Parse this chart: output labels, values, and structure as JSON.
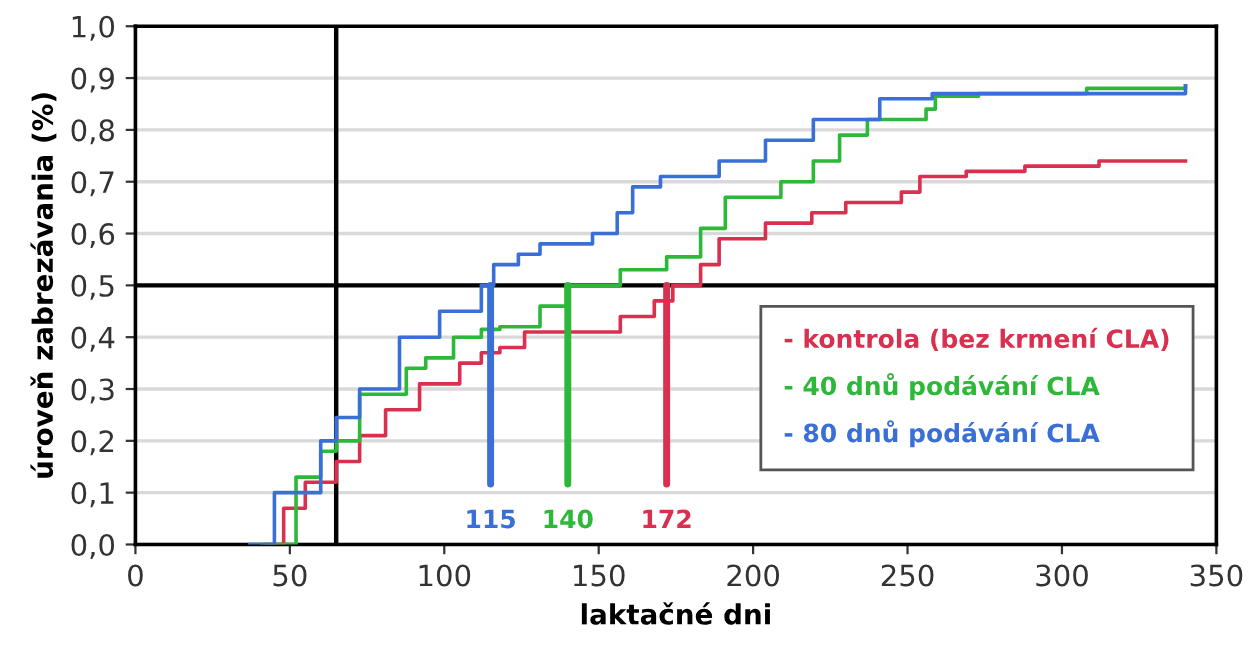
{
  "chart_data": {
    "type": "step",
    "xlabel": "laktačné dni",
    "ylabel": "úroveň zabrezávania (%)",
    "xlim": [
      0,
      350
    ],
    "xticks": [
      0,
      50,
      100,
      150,
      200,
      250,
      300,
      350
    ],
    "ylim": [
      0,
      1
    ],
    "yticks": [
      {
        "value": 0,
        "label": "0,0"
      },
      {
        "value": 0.1,
        "label": "0,1"
      },
      {
        "value": 0.2,
        "label": "0,2"
      },
      {
        "value": 0.3,
        "label": "0,3"
      },
      {
        "value": 0.4,
        "label": "0,4"
      },
      {
        "value": 0.5,
        "label": "0,5"
      },
      {
        "value": 0.6,
        "label": "0,6"
      },
      {
        "value": 0.7,
        "label": "0,7"
      },
      {
        "value": 0.8,
        "label": "0,8"
      },
      {
        "value": 0.9,
        "label": "0,9"
      },
      {
        "value": 1,
        "label": "1,0"
      }
    ],
    "grid": "y",
    "legend": "bottom right",
    "series": [
      {
        "name": "- kontrola (bez krmení CLA)",
        "color": "#d9304f",
        "x": [
          42.6,
          48,
          55,
          65,
          72.6,
          81,
          92,
          105,
          112,
          118,
          126,
          145,
          157,
          168,
          174,
          183,
          189,
          204,
          219,
          230,
          248,
          254,
          269,
          288,
          312,
          340
        ],
        "values": [
          0,
          0.07,
          0.12,
          0.16,
          0.21,
          0.26,
          0.31,
          0.35,
          0.37,
          0.38,
          0.41,
          0.41,
          0.44,
          0.47,
          0.5,
          0.54,
          0.59,
          0.62,
          0.64,
          0.66,
          0.68,
          0.71,
          0.72,
          0.73,
          0.74,
          0.74
        ]
      },
      {
        "name": "- 40 dnů podávání CLA",
        "color": "#2db83a",
        "x": [
          41,
          52,
          60,
          65,
          72.6,
          87.7,
          94,
          103,
          112,
          118,
          131,
          139.5,
          157,
          172,
          183,
          191,
          209,
          219.5,
          228,
          237,
          256,
          259,
          273,
          308,
          340
        ],
        "values": [
          0,
          0.13,
          0.18,
          0.2,
          0.29,
          0.34,
          0.36,
          0.4,
          0.415,
          0.42,
          0.46,
          0.5,
          0.53,
          0.555,
          0.61,
          0.67,
          0.7,
          0.74,
          0.79,
          0.82,
          0.84,
          0.865,
          0.87,
          0.88,
          0.885
        ]
      },
      {
        "name": "- 80 dnů podávání CLA",
        "color": "#3a6fd8",
        "x": [
          37,
          45,
          60,
          65,
          72.6,
          85.5,
          98.5,
          112,
          116,
          124,
          131,
          148,
          156,
          161,
          170,
          189,
          204,
          219.5,
          241,
          258,
          340
        ],
        "values": [
          0,
          0.1,
          0.2,
          0.245,
          0.3,
          0.4,
          0.45,
          0.5,
          0.54,
          0.56,
          0.58,
          0.6,
          0.64,
          0.69,
          0.71,
          0.74,
          0.78,
          0.82,
          0.86,
          0.87,
          0.885
        ]
      }
    ],
    "ref_lines": [
      {
        "axis": "x",
        "value": 65,
        "color": "#000000"
      },
      {
        "axis": "y",
        "value": 0.5,
        "color": "#000000"
      }
    ],
    "annotations": [
      {
        "text": "172",
        "x": 172,
        "y": 0.5
      },
      {
        "text": "140",
        "x": 140,
        "y": 0.5
      },
      {
        "text": "115",
        "x": 115,
        "y": 0.5
      }
    ]
  }
}
